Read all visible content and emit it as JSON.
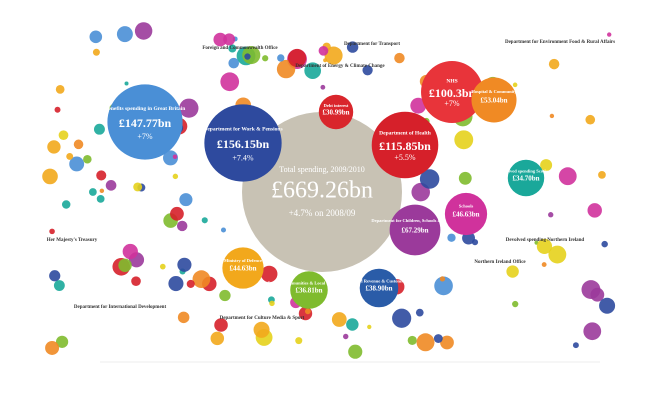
{
  "chart_data": {
    "type": "bubble",
    "total": {
      "name": "Total spending, 2009/2010",
      "value": 669.26,
      "value_label": "£669.26bn",
      "change": "+4.7% on 2008/09"
    },
    "categories": [
      "Department for Work & Pensions",
      "Benefits spending in Great Britain",
      "Department of Health",
      "NHS",
      "Hospital & Community",
      "Department for Children, Schools & Families",
      "Schools",
      "Ministry of Defence",
      "Dept of Communities & Local Government",
      "HM Revenue & Customs",
      "Devolved spending Scotland",
      "Debt interest"
    ],
    "values": [
      156.15,
      147.77,
      115.85,
      100.3,
      53.04,
      67.29,
      46.63,
      44.63,
      36.81,
      38.9,
      34.7,
      30.99
    ],
    "value_labels": [
      "£156.15bn",
      "£147.77bn",
      "£115.85bn",
      "£100.3bn",
      "£53.04bn",
      "£67.29bn",
      "£46.63bn",
      "£44.63bn",
      "£36.81bn",
      "£38.90bn",
      "£34.70bn",
      "£30.99bn"
    ],
    "changes": [
      "+7.4%",
      "+7%",
      "+5.5%",
      "+7%",
      null,
      null,
      null,
      null,
      null,
      null,
      null,
      null
    ],
    "colors": [
      "#2e4a9e",
      "#4a8fd6",
      "#d6202a",
      "#e8343a",
      "#f08a24",
      "#9b3a9b",
      "#d0329c",
      "#f2a81c",
      "#7fbb2e",
      "#2a5ca8",
      "#1aa89a",
      "#d9262c"
    ],
    "total_color": "#c8c2b4",
    "section_labels": [
      "Department for International Development",
      "Department for Culture Media & Sport",
      "Department for Transport",
      "Foreign and Commonwealth Office",
      "Department of Energy & Climate Change",
      "Department for Environment Food & Rural Affairs",
      "Northern Ireland Office",
      "Devolved spending Northern Ireland",
      "Her Majesty's Treasury"
    ]
  }
}
